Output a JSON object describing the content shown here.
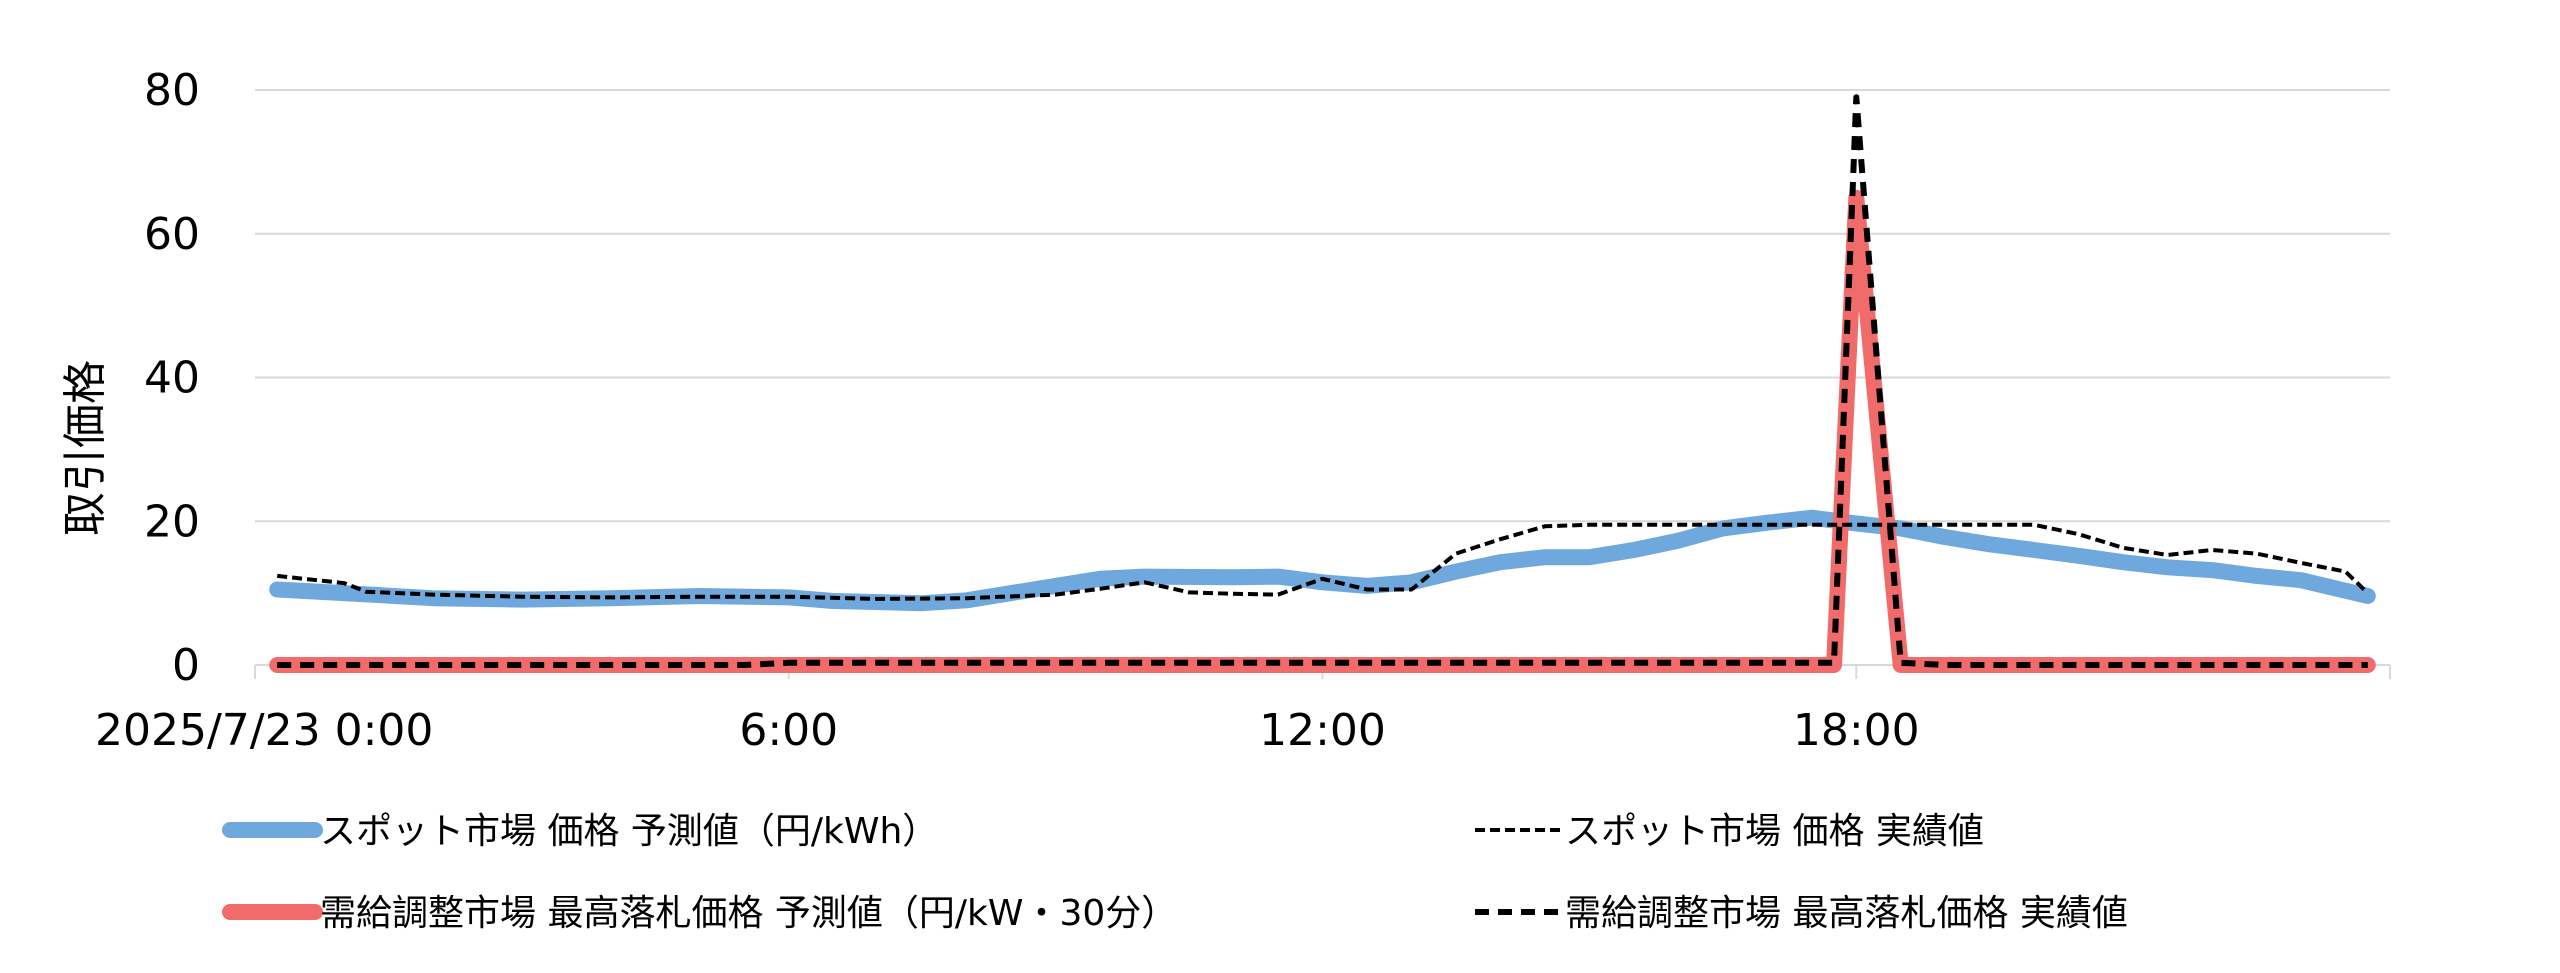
{
  "chart_data": {
    "type": "line",
    "ylabel": "取引価格",
    "ylim": [
      0,
      80
    ],
    "yticks": [
      0,
      20,
      40,
      60,
      80
    ],
    "xlim": [
      0,
      24
    ],
    "xticks": [
      {
        "x": 0,
        "label": "2025/7/23 0:00"
      },
      {
        "x": 6,
        "label": "6:00"
      },
      {
        "x": 12,
        "label": "12:00"
      },
      {
        "x": 18,
        "label": "18:00"
      }
    ],
    "grid": true,
    "legend_position": "bottom",
    "series": [
      {
        "name": "スポット市場 価格 予測値（円/kWh）",
        "color": "#6fa8dc",
        "style": "thick-solid",
        "points": [
          [
            0.25,
            10.5
          ],
          [
            1,
            10
          ],
          [
            2,
            9.3
          ],
          [
            3,
            9.1
          ],
          [
            4,
            9.3
          ],
          [
            5,
            9.6
          ],
          [
            6,
            9.4
          ],
          [
            6.5,
            8.9
          ],
          [
            7.5,
            8.6
          ],
          [
            8,
            9
          ],
          [
            9,
            11
          ],
          [
            9.5,
            12
          ],
          [
            10,
            12.3
          ],
          [
            11,
            12.2
          ],
          [
            11.5,
            12.3
          ],
          [
            12,
            11.5
          ],
          [
            12.5,
            11
          ],
          [
            13,
            11.5
          ],
          [
            13.5,
            13
          ],
          [
            14,
            14.3
          ],
          [
            14.5,
            15
          ],
          [
            15,
            15
          ],
          [
            15.5,
            16
          ],
          [
            16,
            17.3
          ],
          [
            16.5,
            19
          ],
          [
            17,
            19.8
          ],
          [
            17.5,
            20.5
          ],
          [
            18,
            19.7
          ],
          [
            18.5,
            19
          ],
          [
            19,
            17.8
          ],
          [
            19.5,
            16.8
          ],
          [
            20,
            16
          ],
          [
            20.5,
            15.2
          ],
          [
            21,
            14.3
          ],
          [
            21.5,
            13.6
          ],
          [
            22,
            13.2
          ],
          [
            22.5,
            12.4
          ],
          [
            23,
            11.8
          ],
          [
            23.75,
            9.6
          ]
        ]
      },
      {
        "name": "スポット市場 価格 実績値",
        "color": "#000000",
        "style": "fine-dash",
        "points": [
          [
            0.25,
            12.4
          ],
          [
            1,
            11.4
          ],
          [
            1.25,
            10.2
          ],
          [
            2,
            9.8
          ],
          [
            3,
            9.5
          ],
          [
            4,
            9.4
          ],
          [
            5,
            9.5
          ],
          [
            6,
            9.5
          ],
          [
            7,
            9.2
          ],
          [
            8,
            9.3
          ],
          [
            9,
            9.8
          ],
          [
            9.5,
            10.6
          ],
          [
            10,
            11.5
          ],
          [
            10.5,
            10.1
          ],
          [
            11,
            9.9
          ],
          [
            11.5,
            9.8
          ],
          [
            12,
            12
          ],
          [
            12.5,
            10.5
          ],
          [
            13,
            10.5
          ],
          [
            13.5,
            15.5
          ],
          [
            14,
            17.5
          ],
          [
            14.5,
            19.3
          ],
          [
            15,
            19.5
          ],
          [
            16,
            19.5
          ],
          [
            17,
            19.5
          ],
          [
            17.5,
            19.5
          ],
          [
            18,
            19.5
          ],
          [
            18.5,
            19.5
          ],
          [
            19,
            19.5
          ],
          [
            19.5,
            19.5
          ],
          [
            20,
            19.5
          ],
          [
            20.5,
            18.2
          ],
          [
            21,
            16.3
          ],
          [
            21.5,
            15.3
          ],
          [
            22,
            16
          ],
          [
            22.5,
            15.5
          ],
          [
            23,
            14.2
          ],
          [
            23.5,
            13
          ],
          [
            23.75,
            10
          ]
        ]
      },
      {
        "name": "需給調整市場 最高落札価格 予測値（円/kW・30分）",
        "color": "#f26b6b",
        "style": "thick-solid",
        "points": [
          [
            0.25,
            0
          ],
          [
            17.75,
            0
          ],
          [
            18,
            65
          ],
          [
            18.5,
            0
          ],
          [
            23.75,
            0
          ]
        ]
      },
      {
        "name": "需給調整市場 最高落札価格 実績値",
        "color": "#000000",
        "style": "bold-dash",
        "points": [
          [
            0.25,
            0
          ],
          [
            5.5,
            0
          ],
          [
            6,
            0.3
          ],
          [
            17.75,
            0.3
          ],
          [
            18,
            79
          ],
          [
            18.5,
            0.3
          ],
          [
            19,
            0
          ],
          [
            23.75,
            0
          ]
        ]
      }
    ]
  }
}
